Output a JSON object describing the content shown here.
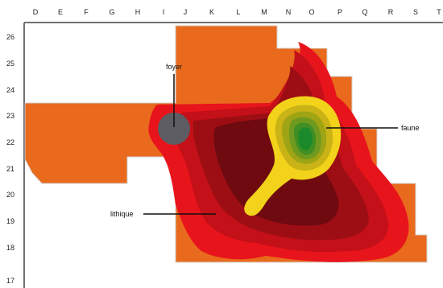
{
  "grid": {
    "columns": [
      "D",
      "E",
      "F",
      "G",
      "H",
      "I",
      "J",
      "K",
      "L",
      "M",
      "N",
      "O",
      "P",
      "Q",
      "R",
      "S",
      "T"
    ],
    "rows": [
      "26",
      "25",
      "24",
      "23",
      "22",
      "21",
      "20",
      "19",
      "18",
      "17"
    ]
  },
  "labels": {
    "foyer": "foyer",
    "faune": "faune",
    "lithique": "lithique"
  },
  "colors": {
    "orange": "#e96a1c",
    "red": "#e8141c",
    "crimson": "#c41018",
    "dark_red": "#9c0e14",
    "maroon": "#6e0a10",
    "yellow": "#f2d21a",
    "olive": "#c9b316",
    "olive2": "#9ea414",
    "green1": "#6f9a1f",
    "green2": "#3f8f24",
    "green3": "#1a8a2a",
    "foyer_gray": "#5c5c62",
    "axis": "#444444"
  }
}
